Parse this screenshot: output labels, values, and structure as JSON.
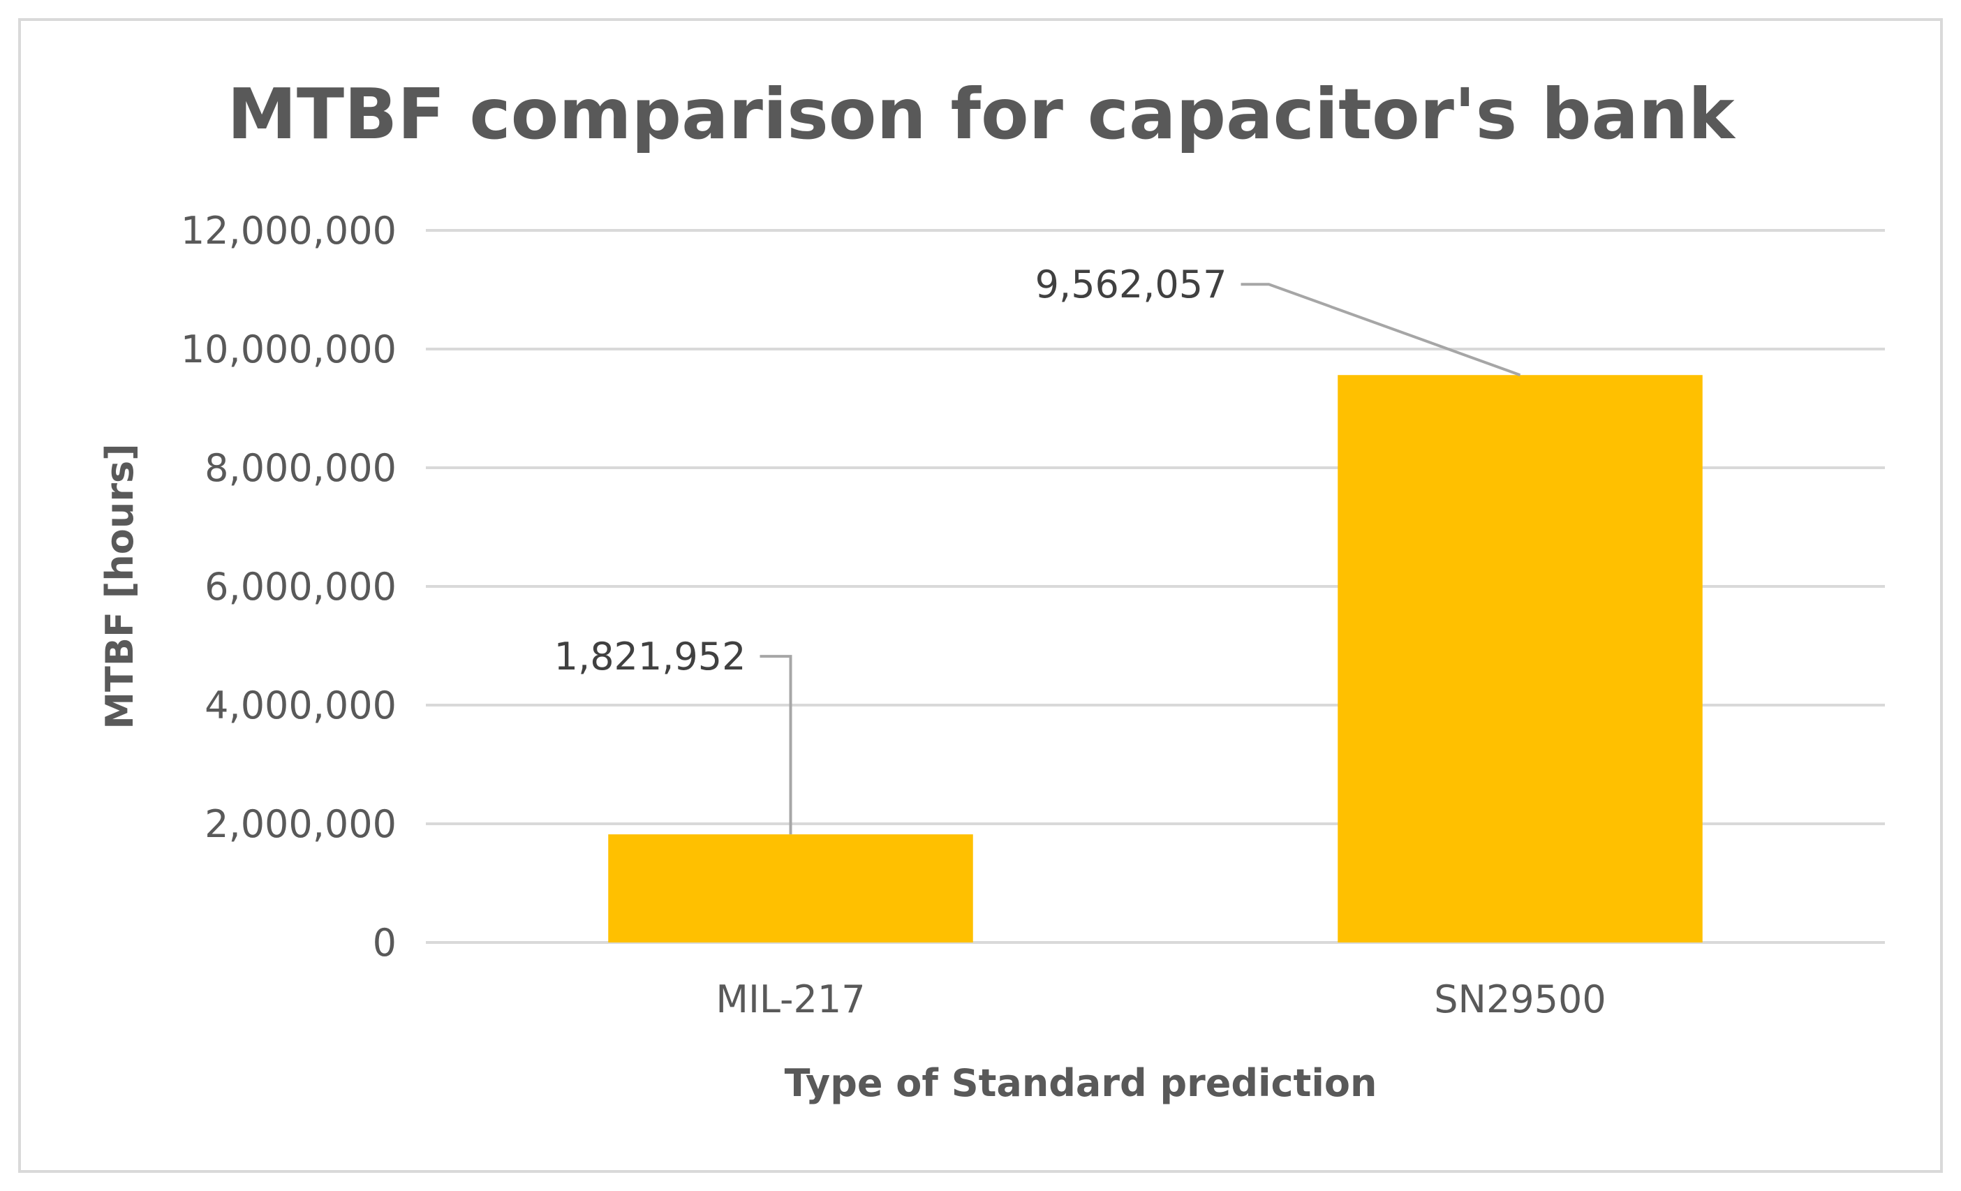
{
  "chart_data": {
    "type": "bar",
    "title": "MTBF comparison for capacitor's bank",
    "xlabel": "Type of Standard prediction",
    "ylabel": "MTBF [hours]",
    "categories": [
      "MIL-217",
      "SN29500"
    ],
    "values": [
      1821952,
      9562057
    ],
    "data_labels": [
      "1,821,952",
      "9,562,057"
    ],
    "ylim": [
      0,
      12000000
    ],
    "yticks": [
      0,
      2000000,
      4000000,
      6000000,
      8000000,
      10000000,
      12000000
    ],
    "ytick_labels": [
      "0",
      "2,000,000",
      "4,000,000",
      "6,000,000",
      "8,000,000",
      "10,000,000",
      "12,000,000"
    ],
    "grid": true,
    "legend": "none",
    "bar_color": "#ffc000",
    "gridline_color": "#d9d9d9",
    "leader_line_color": "#a6a6a6"
  }
}
